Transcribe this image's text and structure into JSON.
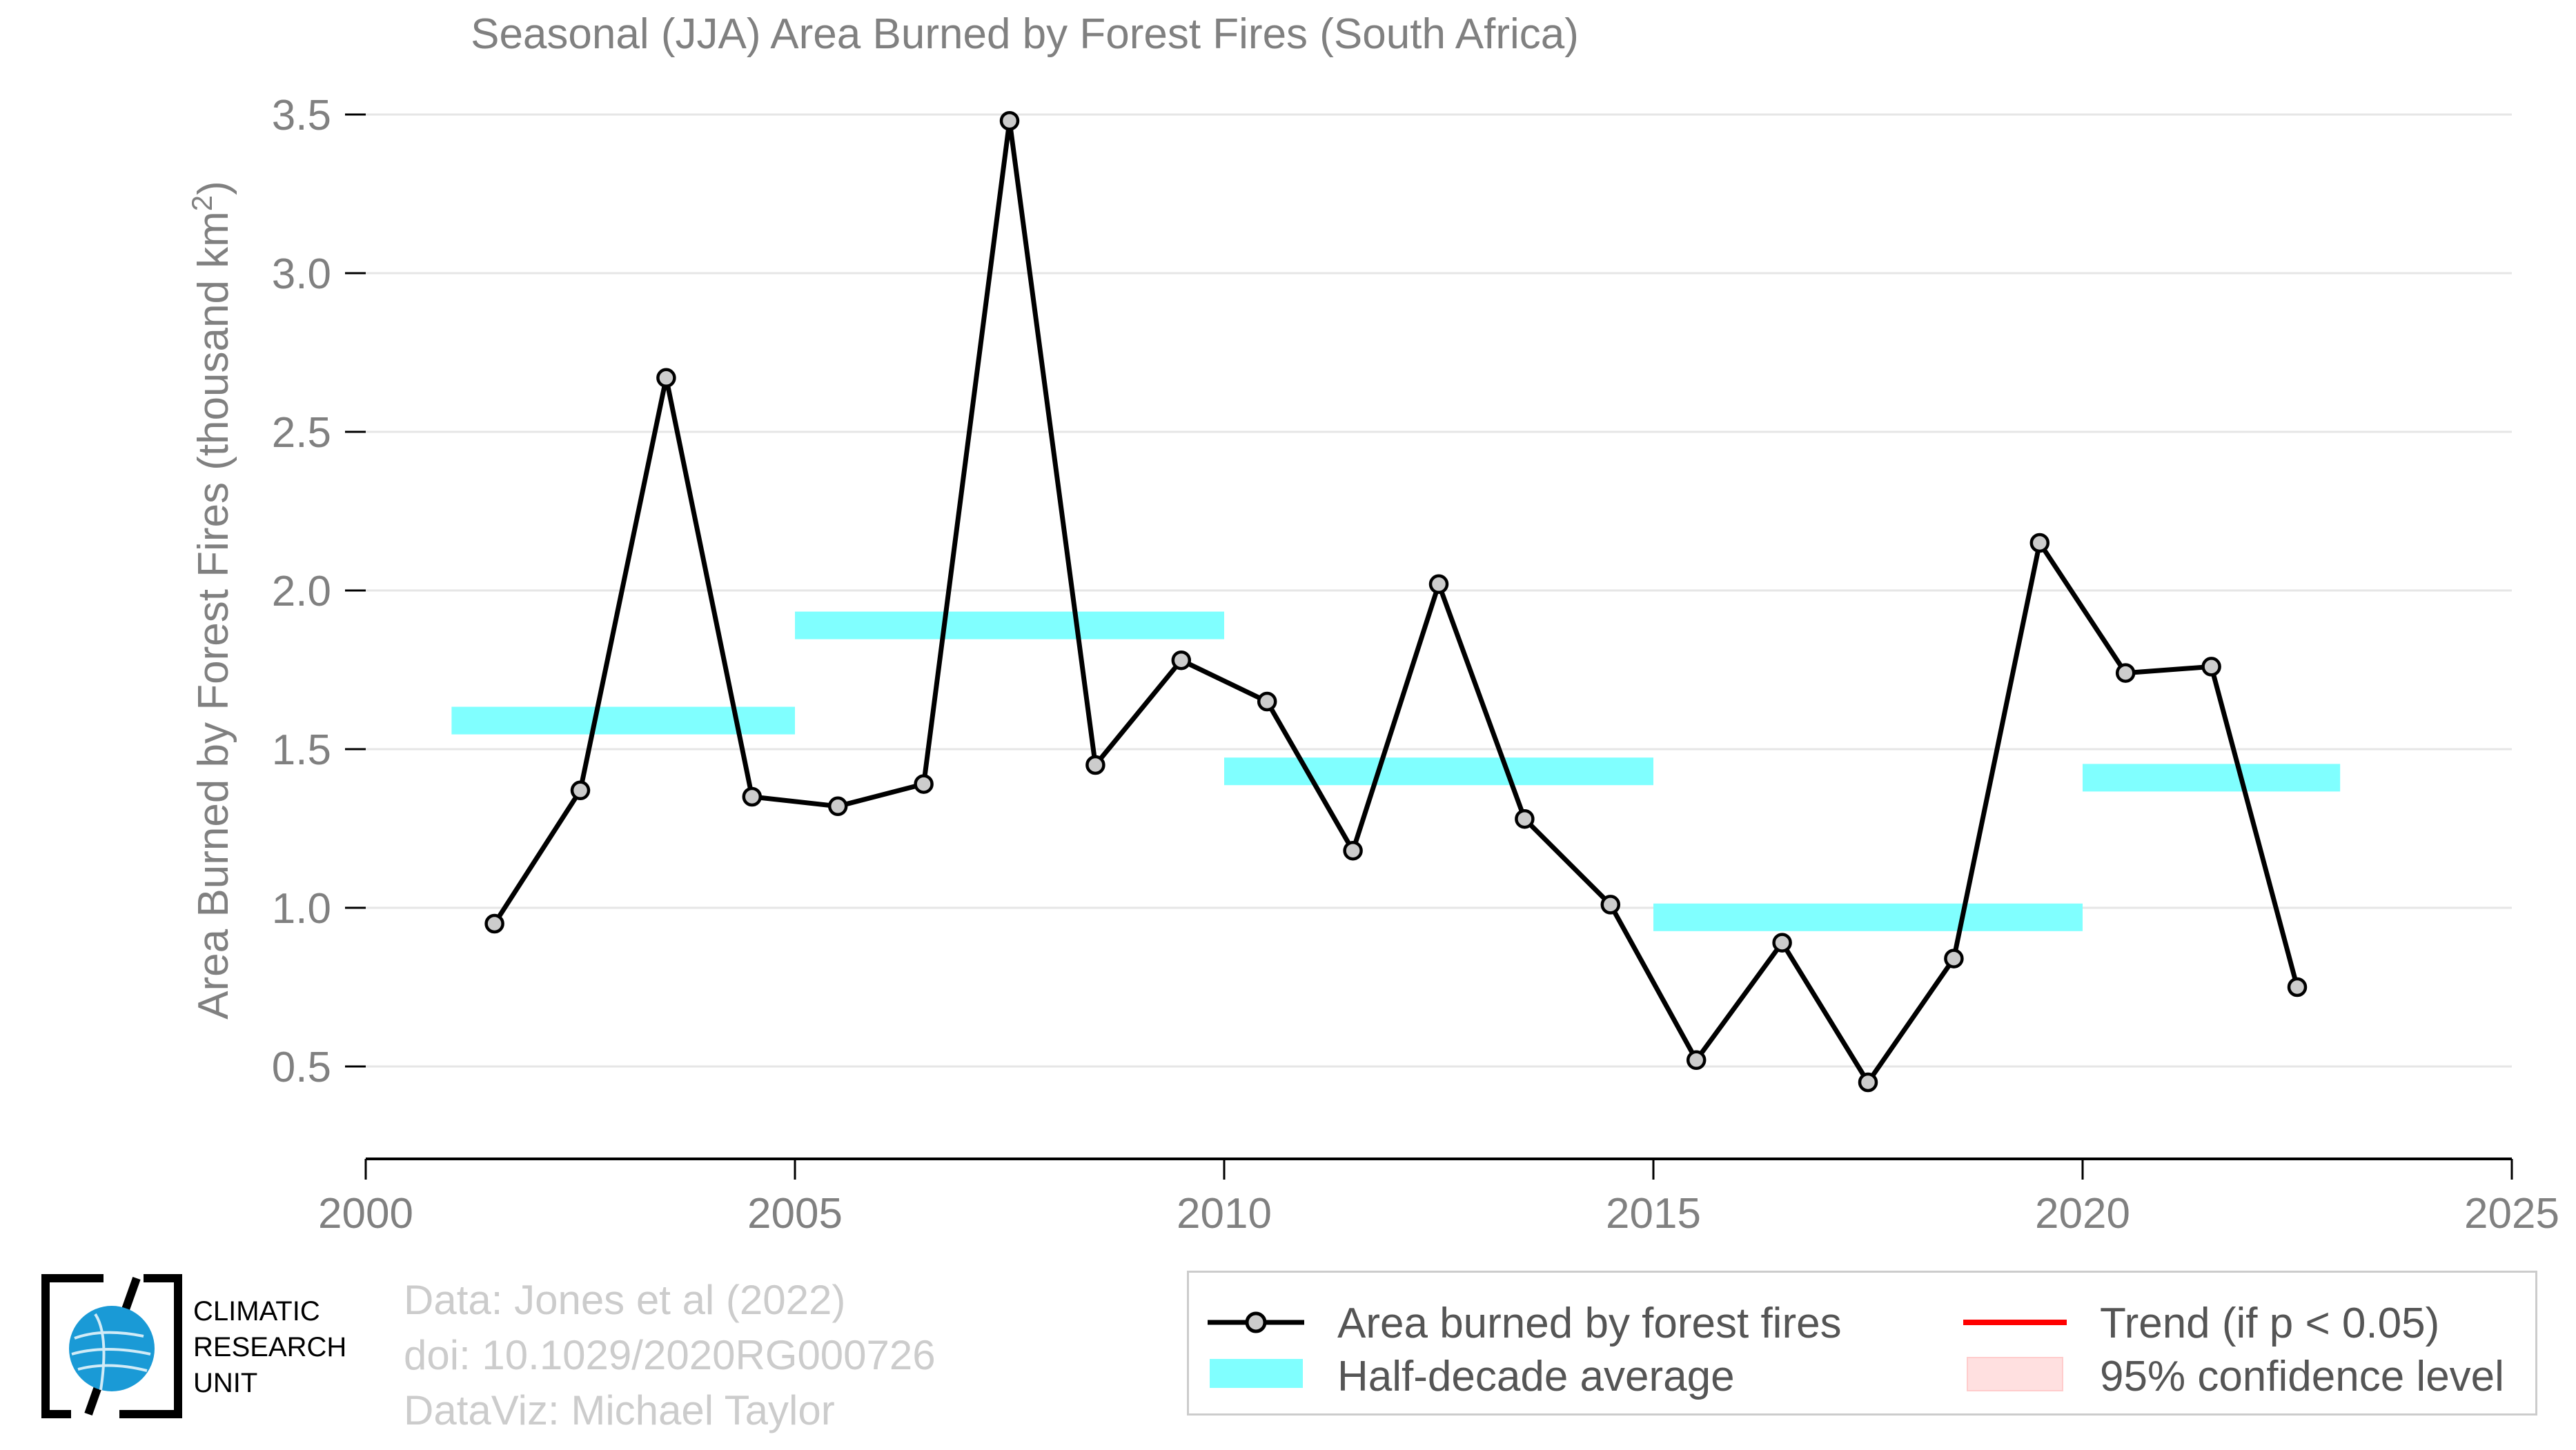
{
  "chart_data": {
    "type": "line",
    "title": "Seasonal (JJA) Area Burned by Forest Fires (South Africa)",
    "ylabel": "Area Burned by Forest Fires (thousand km",
    "ylabel_sup": "2",
    "ylabel_end": ")",
    "xlim": [
      2000,
      2025
    ],
    "ylim": [
      0.2,
      3.5
    ],
    "xticks": [
      2000,
      2005,
      2010,
      2015,
      2020,
      2025
    ],
    "yticks": [
      0.5,
      1.0,
      1.5,
      2.0,
      2.5,
      3.0,
      3.5
    ],
    "ytick_labels": [
      "0.5",
      "1.0",
      "1.5",
      "2.0",
      "2.5",
      "3.0",
      "3.5"
    ],
    "series": [
      {
        "name": "Area burned by forest fires",
        "color": "#000000",
        "marker_fill": "#cccccc",
        "x": [
          2001.5,
          2002.5,
          2003.5,
          2004.5,
          2005.5,
          2006.5,
          2007.5,
          2008.5,
          2009.5,
          2010.5,
          2011.5,
          2012.5,
          2013.5,
          2014.5,
          2015.5,
          2016.5,
          2017.5,
          2018.5,
          2019.5,
          2020.5,
          2021.5,
          2022.5
        ],
        "y": [
          0.95,
          1.37,
          2.67,
          1.35,
          1.32,
          1.39,
          3.48,
          1.45,
          1.78,
          1.65,
          1.18,
          2.02,
          1.28,
          1.01,
          0.52,
          0.89,
          0.45,
          0.84,
          2.15,
          1.74,
          1.76,
          0.75
        ]
      }
    ],
    "half_decade_averages": {
      "name": "Half-decade average",
      "color": "#80ffff",
      "segments": [
        {
          "x0": 2001,
          "x1": 2005,
          "y": 1.59
        },
        {
          "x0": 2005,
          "x1": 2010,
          "y": 1.89
        },
        {
          "x0": 2010,
          "x1": 2015,
          "y": 1.43
        },
        {
          "x0": 2015,
          "x1": 2020,
          "y": 0.97
        },
        {
          "x0": 2020,
          "x1": 2023,
          "y": 1.41
        }
      ]
    },
    "trend": {
      "name": "Trend (if p < 0.05)",
      "color": "#ff0000"
    },
    "confidence": {
      "name": "95% confidence level",
      "color": "#ffe0e0"
    },
    "grid": true,
    "legend_position": "bottom-right"
  },
  "credits": {
    "line1": "Data: Jones et al (2022)",
    "line2": "doi: 10.1029/2020RG000726",
    "line3": "DataViz: Michael Taylor"
  },
  "logo": {
    "line1": "CLIMATIC",
    "line2": "RESEARCH",
    "line3": "UNIT",
    "accent": "#1a9ad6"
  },
  "legend": {
    "series_label": "Area burned by forest fires",
    "average_label": "Half-decade average",
    "trend_label": "Trend (if p < 0.05)",
    "confidence_label": "95% confidence level"
  },
  "colors": {
    "axis_text": "#808080",
    "grid": "#e6e6e6"
  }
}
